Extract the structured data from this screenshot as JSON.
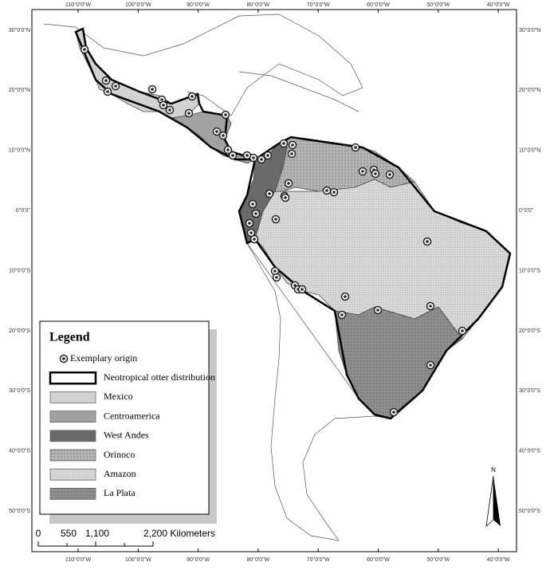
{
  "graticule": {
    "longitudes": [
      "110°0'0\"W",
      "100°0'0\"W",
      "90°0'0\"W",
      "80°0'0\"W",
      "70°0'0\"W",
      "60°0'0\"W",
      "50°0'0\"W",
      "40°0'0\"W"
    ],
    "latitudes": [
      "30°0'0\"N",
      "20°0'0\"N",
      "10°0'0\"N",
      "0°0'0\"",
      "10°0'0\"S",
      "20°0'0\"S",
      "30°0'0\"S",
      "40°0'0\"S",
      "50°0'0\"S"
    ]
  },
  "legend": {
    "title": "Legend",
    "items": [
      {
        "label": "Exemplary origin"
      },
      {
        "label": "Neotropical otter distribution"
      },
      {
        "label": "Mexico"
      },
      {
        "label": "Centroamerica"
      },
      {
        "label": "West Andes"
      },
      {
        "label": "Orinoco"
      },
      {
        "label": "Amazon"
      },
      {
        "label": "La Plata"
      }
    ]
  },
  "scale_bar": {
    "labels": [
      "0",
      "550",
      "1,100",
      "2,200 Kilometers"
    ]
  },
  "north_arrow": {
    "label": "N"
  }
}
